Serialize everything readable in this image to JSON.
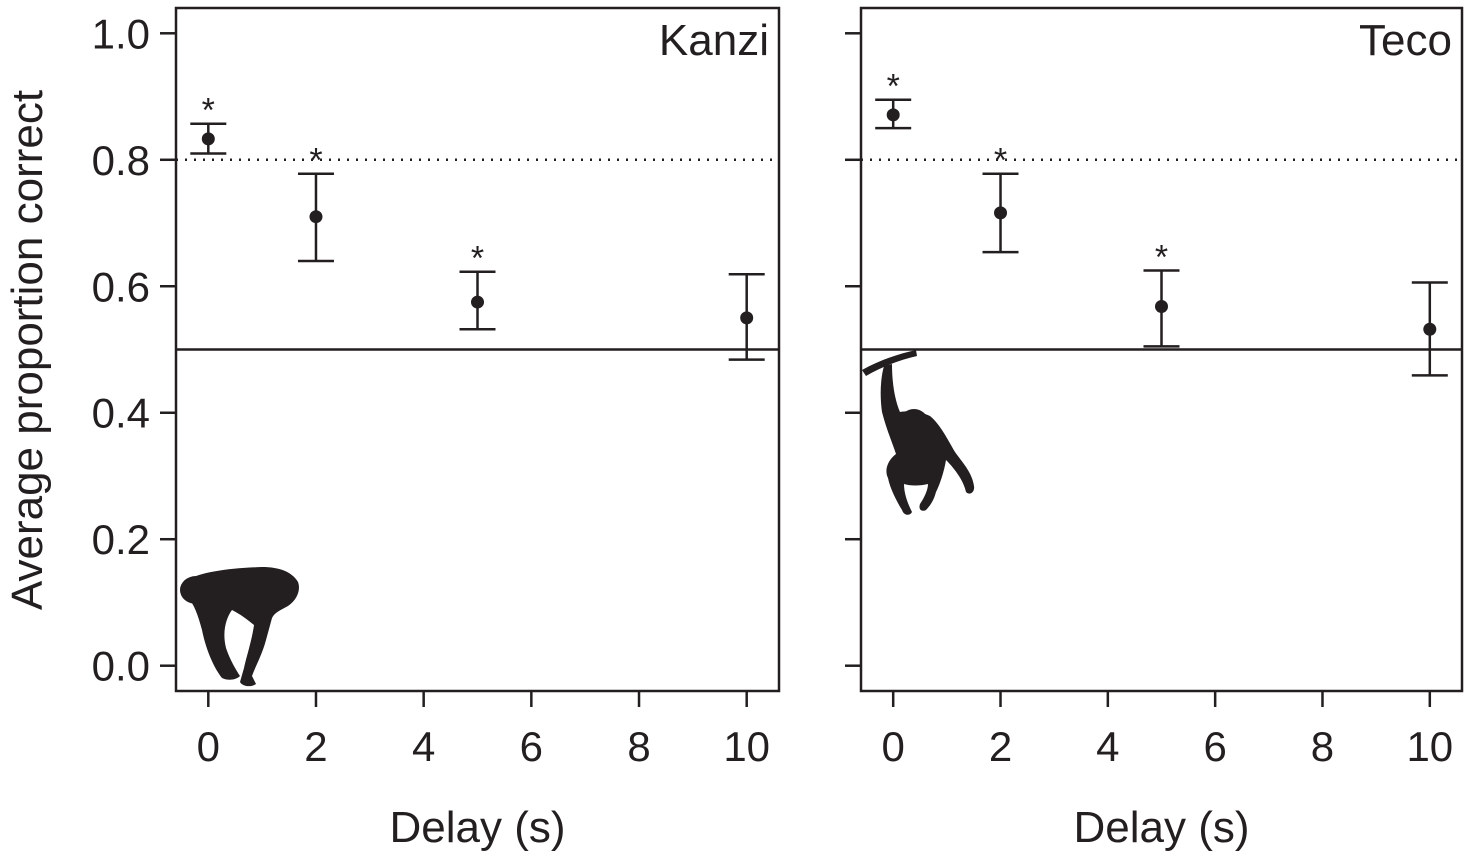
{
  "figure": {
    "ylabel": "Average proportion correct",
    "colors": {
      "ink": "#231f20",
      "background": "#ffffff"
    }
  },
  "chart_data": [
    {
      "type": "scatter",
      "title": "Kanzi",
      "xlabel": "Delay (s)",
      "ylabel": "Average proportion correct",
      "xlim": [
        -0.6,
        10.6
      ],
      "ylim": [
        -0.04,
        1.04
      ],
      "xticks": [
        0,
        2,
        4,
        6,
        8,
        10
      ],
      "xtick_labels": [
        "0",
        "2",
        "4",
        "6",
        "8",
        "10"
      ],
      "yticks": [
        0.0,
        0.2,
        0.4,
        0.6,
        0.8,
        1.0
      ],
      "ytick_labels": [
        "0.0",
        "0.2",
        "0.4",
        "0.6",
        "0.8",
        "1.0"
      ],
      "reference_lines": {
        "chance": 0.5,
        "criterion": 0.8
      },
      "points": [
        {
          "x": 0,
          "y": 0.833,
          "err_low": 0.81,
          "err_high": 0.857,
          "significant": true
        },
        {
          "x": 2,
          "y": 0.71,
          "err_low": 0.64,
          "err_high": 0.778,
          "significant": true
        },
        {
          "x": 5,
          "y": 0.575,
          "err_low": 0.532,
          "err_high": 0.623,
          "significant": true
        },
        {
          "x": 10,
          "y": 0.55,
          "err_low": 0.484,
          "err_high": 0.619,
          "significant": false
        }
      ],
      "significance_marker": "*",
      "silhouette": "bonobo-standing-icon",
      "grid": false
    },
    {
      "type": "scatter",
      "title": "Teco",
      "xlabel": "Delay (s)",
      "ylabel": "",
      "xlim": [
        -0.6,
        10.6
      ],
      "ylim": [
        -0.04,
        1.04
      ],
      "xticks": [
        0,
        2,
        4,
        6,
        8,
        10
      ],
      "xtick_labels": [
        "0",
        "2",
        "4",
        "6",
        "8",
        "10"
      ],
      "yticks": [
        0.0,
        0.2,
        0.4,
        0.6,
        0.8,
        1.0
      ],
      "ytick_labels": [],
      "reference_lines": {
        "chance": 0.5,
        "criterion": 0.8
      },
      "points": [
        {
          "x": 0,
          "y": 0.871,
          "err_low": 0.85,
          "err_high": 0.895,
          "significant": true
        },
        {
          "x": 2,
          "y": 0.716,
          "err_low": 0.654,
          "err_high": 0.778,
          "significant": true
        },
        {
          "x": 5,
          "y": 0.568,
          "err_low": 0.505,
          "err_high": 0.625,
          "significant": true
        },
        {
          "x": 10,
          "y": 0.532,
          "err_low": 0.459,
          "err_high": 0.606,
          "significant": false
        }
      ],
      "significance_marker": "*",
      "silhouette": "bonobo-hanging-icon",
      "grid": false
    }
  ]
}
